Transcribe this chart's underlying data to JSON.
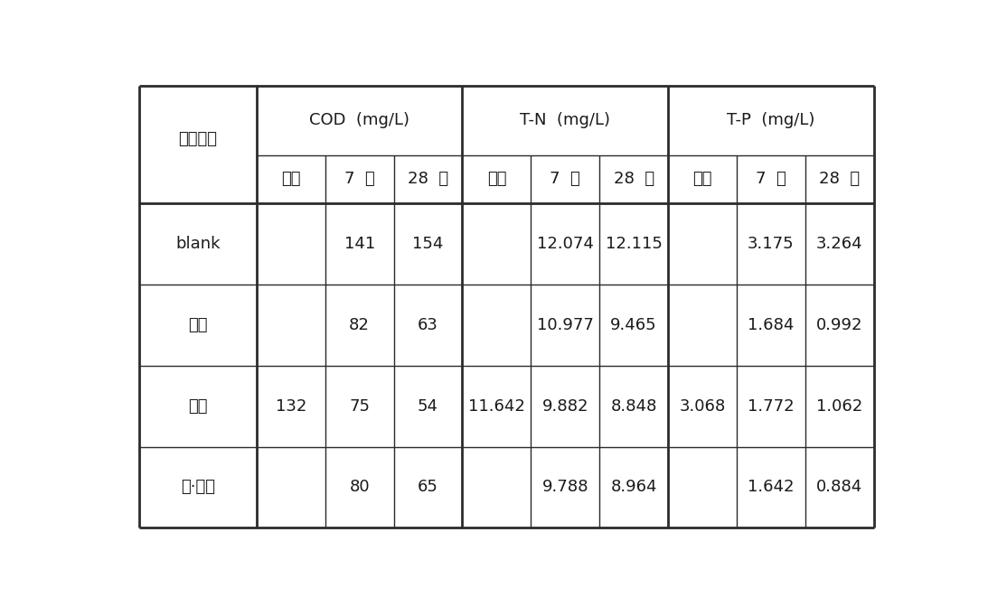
{
  "background_color": "#ffffff",
  "border_color": "#2b2b2b",
  "header_groups": [
    {
      "label": "COD  (mg/L)"
    },
    {
      "label": "T-N  (mg/L)"
    },
    {
      "label": "T-P  (mg/L)"
    }
  ],
  "sub_headers": [
    "초기",
    "7  일",
    "28  일",
    "초기",
    "7  일",
    "28  일",
    "초기",
    "7  일",
    "28  일"
  ],
  "row_headers": [
    "blank",
    "투수",
    "보수",
    "투·보수"
  ],
  "col0_label": "시료구분",
  "merged_values": {
    "COD_init": "132",
    "TN_init": "11.642",
    "TP_init": "3.068"
  },
  "data": [
    [
      "",
      "141",
      "154",
      "",
      "12.074",
      "12.115",
      "",
      "3.175",
      "3.264"
    ],
    [
      "",
      "82",
      "63",
      "",
      "10.977",
      "9.465",
      "",
      "1.684",
      "0.992"
    ],
    [
      "",
      "75",
      "54",
      "",
      "9.882",
      "8.848",
      "",
      "1.772",
      "1.062"
    ],
    [
      "",
      "80",
      "65",
      "",
      "9.788",
      "8.964",
      "",
      "1.642",
      "0.884"
    ]
  ],
  "lw_thick": 2.0,
  "lw_thin": 1.0,
  "fontsize": 13
}
